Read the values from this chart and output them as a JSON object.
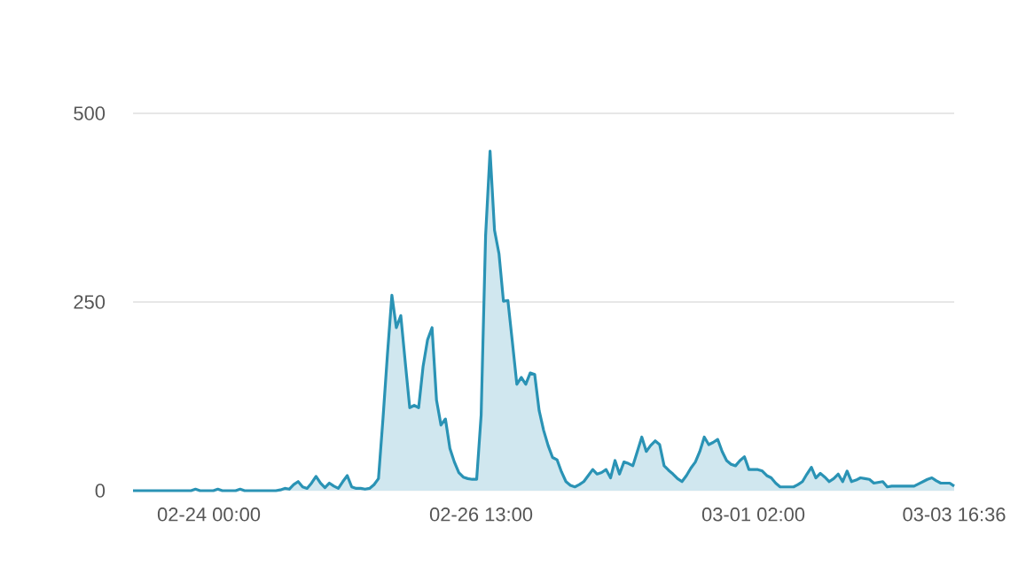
{
  "chart_data": {
    "type": "area",
    "categories": [
      null,
      null,
      null,
      null,
      null,
      null,
      null,
      null,
      null,
      null,
      null,
      null,
      null,
      null,
      null,
      null,
      null,
      "02-24 00:00",
      null,
      null,
      null,
      null,
      null,
      null,
      null,
      null,
      null,
      null,
      null,
      null,
      null,
      null,
      null,
      null,
      null,
      null,
      null,
      null,
      null,
      null,
      null,
      null,
      null,
      null,
      null,
      null,
      null,
      null,
      null,
      null,
      null,
      null,
      null,
      null,
      null,
      null,
      null,
      null,
      null,
      null,
      null,
      null,
      null,
      null,
      null,
      null,
      null,
      null,
      null,
      null,
      null,
      null,
      null,
      null,
      null,
      null,
      null,
      null,
      "02-26 13:00",
      null,
      null,
      null,
      null,
      null,
      null,
      null,
      null,
      null,
      null,
      null,
      null,
      null,
      null,
      null,
      null,
      null,
      null,
      null,
      null,
      null,
      null,
      null,
      null,
      null,
      null,
      null,
      null,
      null,
      null,
      null,
      null,
      null,
      null,
      null,
      null,
      null,
      null,
      null,
      null,
      null,
      null,
      null,
      null,
      null,
      null,
      null,
      null,
      null,
      null,
      null,
      null,
      null,
      null,
      null,
      null,
      null,
      null,
      null,
      null,
      "03-01 02:00",
      null,
      null,
      null,
      null,
      null,
      null,
      null,
      null,
      null,
      null,
      null,
      null,
      null,
      null,
      null,
      null,
      null,
      null,
      null,
      null,
      null,
      null,
      null,
      null,
      null,
      null,
      null,
      null,
      null,
      null,
      null,
      null,
      null,
      null,
      null,
      null,
      null,
      null,
      null,
      null,
      null,
      null,
      null,
      null,
      "03-03 16:36"
    ],
    "series": [
      {
        "color": "#2a93b5",
        "values": [
          0,
          0,
          0,
          0,
          0,
          0,
          0,
          0,
          0,
          0,
          0,
          0,
          0,
          0,
          2,
          0,
          0,
          0,
          0,
          2,
          0,
          0,
          0,
          0,
          2,
          0,
          0,
          0,
          0,
          0,
          0,
          0,
          0,
          1,
          3,
          2,
          8,
          12,
          5,
          3,
          10,
          19,
          10,
          4,
          10,
          6,
          3,
          12,
          20,
          5,
          3,
          3,
          2,
          3,
          8,
          16,
          95,
          180,
          259,
          216,
          232,
          170,
          110,
          113,
          110,
          165,
          200,
          216,
          120,
          87,
          95,
          56,
          38,
          24,
          18,
          16,
          15,
          15,
          100,
          338,
          450,
          345,
          314,
          251,
          252,
          197,
          141,
          150,
          141,
          156,
          154,
          106,
          80,
          60,
          44,
          41,
          25,
          12,
          7,
          5,
          8,
          12,
          20,
          28,
          22,
          24,
          28,
          17,
          40,
          22,
          38,
          36,
          33,
          52,
          71,
          52,
          60,
          66,
          61,
          33,
          27,
          22,
          16,
          12,
          20,
          30,
          38,
          52,
          71,
          61,
          64,
          68,
          52,
          40,
          35,
          33,
          40,
          45,
          28,
          28,
          28,
          26,
          20,
          17,
          10,
          5,
          5,
          5,
          5,
          8,
          12,
          22,
          31,
          17,
          23,
          18,
          12,
          16,
          22,
          12,
          26,
          12,
          14,
          17,
          16,
          15,
          10,
          11,
          12,
          5,
          6,
          6,
          6,
          6,
          6,
          6,
          9,
          12,
          15,
          17,
          13,
          10,
          10,
          10,
          6
        ]
      }
    ],
    "ylim": [
      0,
      500
    ],
    "yticks": [
      0,
      250,
      500
    ],
    "grid": "y",
    "marker": "none",
    "line_style": "solid"
  }
}
